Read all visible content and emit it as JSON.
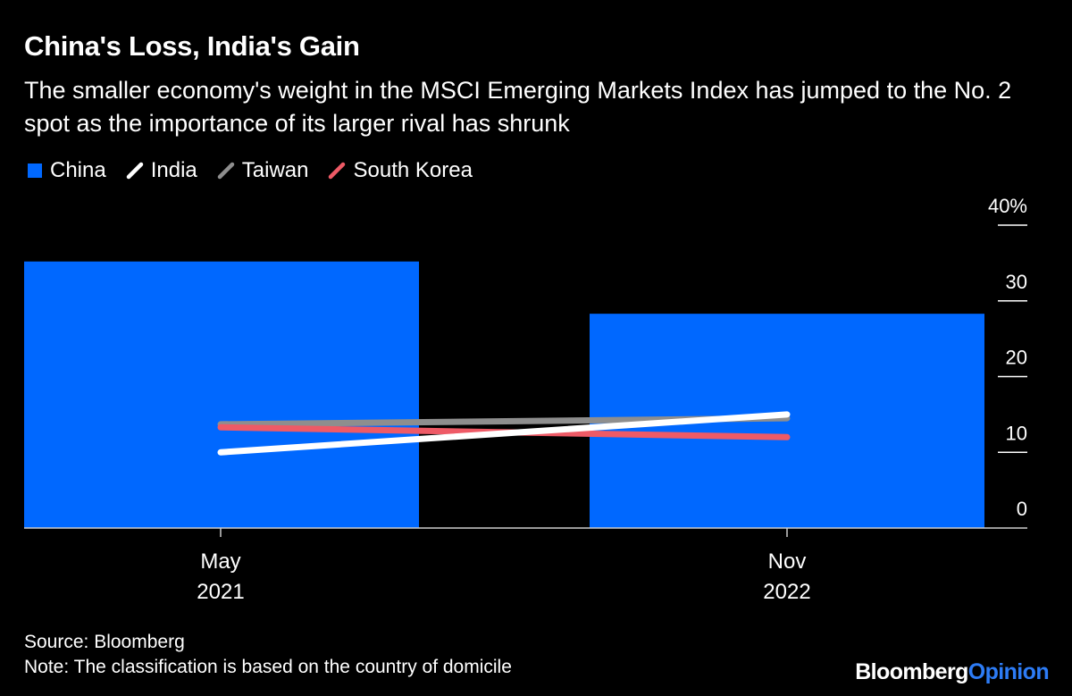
{
  "title": "China's Loss, India's Gain",
  "subtitle": "The smaller economy's weight in the MSCI Emerging Markets Index has jumped to the No. 2 spot as the importance of its larger rival has shrunk",
  "legend": [
    {
      "label": "China",
      "shape": "square",
      "color": "#0068ff"
    },
    {
      "label": "India",
      "shape": "line",
      "color": "#ffffff"
    },
    {
      "label": "Taiwan",
      "shape": "line",
      "color": "#8e8e8e"
    },
    {
      "label": "South Korea",
      "shape": "line",
      "color": "#ee5a66"
    }
  ],
  "chart_data": {
    "type": "bar",
    "categories": [
      {
        "month": "May",
        "year": "2021"
      },
      {
        "month": "Nov",
        "year": "2022"
      }
    ],
    "bar_series": {
      "name": "China",
      "values": [
        35.2,
        28.3
      ],
      "color": "#0068ff"
    },
    "line_series": [
      {
        "name": "Taiwan",
        "values": [
          13.7,
          14.5
        ],
        "color": "#8e8e8e"
      },
      {
        "name": "South Korea",
        "values": [
          13.3,
          12.0
        ],
        "color": "#ee5a66"
      },
      {
        "name": "India",
        "values": [
          10.0,
          15.0
        ],
        "color": "#ffffff"
      }
    ],
    "y_ticks": [
      0,
      10,
      20,
      30,
      40
    ],
    "y_tick_labels": [
      "0",
      "10",
      "20",
      "30",
      "40%"
    ],
    "ylim": [
      0,
      40
    ],
    "y_axis_side": "right",
    "xlabel": "",
    "ylabel": ""
  },
  "source": "Source: Bloomberg",
  "note": "Note: The classification is based on the country of domicile",
  "brand": {
    "name": "Bloomberg",
    "suffix": "Opinion"
  }
}
